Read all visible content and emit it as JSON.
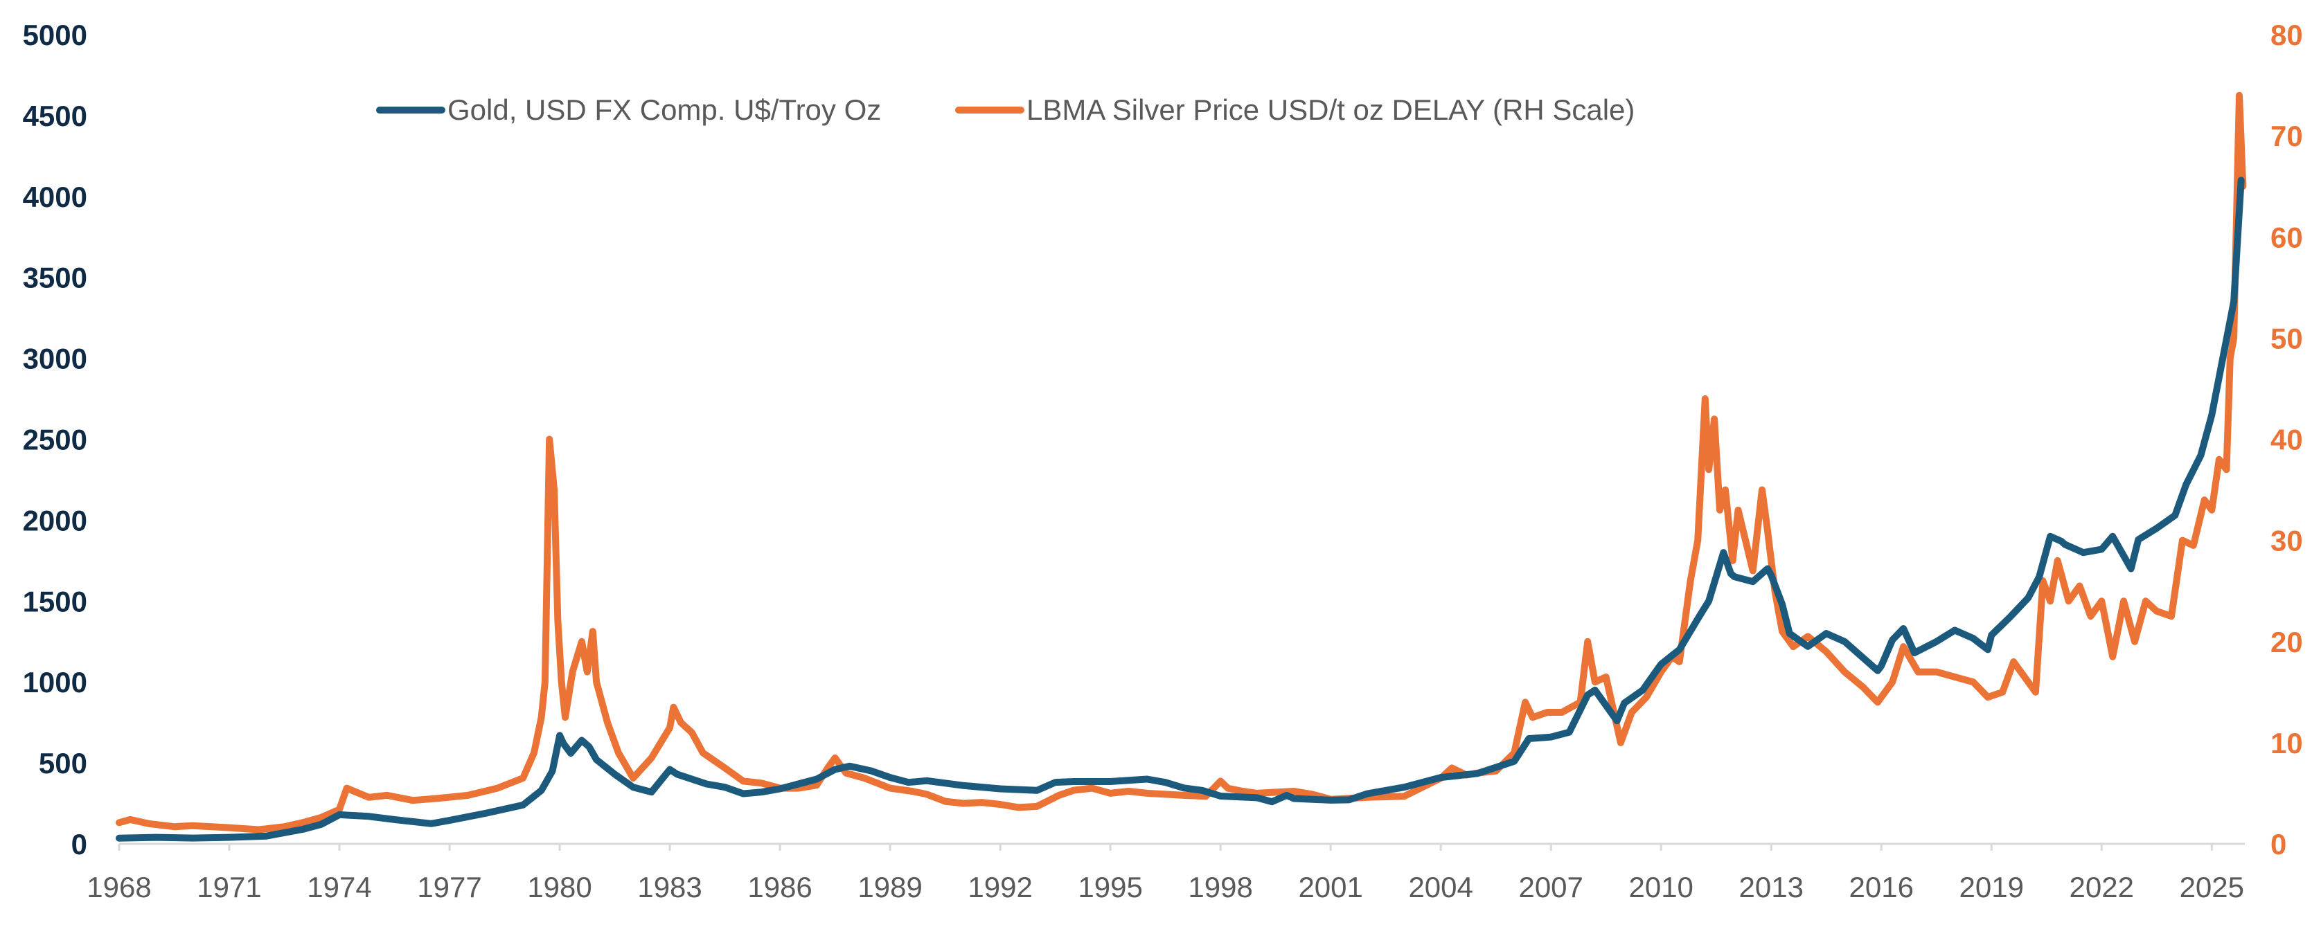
{
  "chart_data": {
    "type": "line",
    "title": "",
    "xlabel": "",
    "ylabel": "",
    "ylabel_right": "",
    "grid": false,
    "legend_position": "top",
    "xlim": [
      1968,
      2025.9
    ],
    "ylim": [
      0,
      5000
    ],
    "ylim_right": [
      0,
      80
    ],
    "x_ticks": [
      1968,
      1971,
      1974,
      1977,
      1980,
      1983,
      1986,
      1989,
      1992,
      1995,
      1998,
      2001,
      2004,
      2007,
      2010,
      2013,
      2016,
      2019,
      2022,
      2025
    ],
    "x_tick_labels": [
      "1968",
      "1971",
      "1974",
      "1977",
      "1980",
      "1983",
      "1986",
      "1989",
      "1992",
      "1995",
      "1998",
      "2001",
      "2004",
      "2007",
      "2010",
      "2013",
      "2016",
      "2019",
      "2022",
      "2025"
    ],
    "y_ticks_left": [
      0,
      500,
      1000,
      1500,
      2000,
      2500,
      3000,
      3500,
      4000,
      4500,
      5000
    ],
    "y_tick_labels_left": [
      "0",
      "500",
      "1000",
      "1500",
      "2000",
      "2500",
      "3000",
      "3500",
      "4000",
      "4500",
      "5000"
    ],
    "y_ticks_right": [
      0,
      10,
      20,
      30,
      40,
      50,
      60,
      70,
      80
    ],
    "y_tick_labels_right": [
      "0",
      "10",
      "20",
      "30",
      "40",
      "50",
      "60",
      "70",
      "80"
    ],
    "series": [
      {
        "name": "Gold, USD FX Comp. U$/Troy Oz",
        "axis": "left",
        "color": "#1c5a7d",
        "x": [
          1968.0,
          1969.0,
          1970.0,
          1971.0,
          1972.0,
          1973.0,
          1973.5,
          1974.0,
          1974.8,
          1975.5,
          1976.5,
          1977.0,
          1978.0,
          1979.0,
          1979.5,
          1979.8,
          1980.0,
          1980.1,
          1980.3,
          1980.6,
          1980.8,
          1981.0,
          1981.5,
          1982.0,
          1982.5,
          1983.0,
          1983.2,
          1983.6,
          1984.0,
          1984.5,
          1985.0,
          1985.5,
          1986.0,
          1986.5,
          1987.0,
          1987.5,
          1987.9,
          1988.5,
          1989.0,
          1989.5,
          1990.0,
          1991.0,
          1992.0,
          1993.0,
          1993.5,
          1994.0,
          1995.0,
          1996.0,
          1996.5,
          1997.0,
          1997.5,
          1998.0,
          1999.0,
          1999.4,
          1999.8,
          2000.0,
          2001.0,
          2001.5,
          2002.0,
          2003.0,
          2004.0,
          2005.0,
          2006.0,
          2006.4,
          2007.0,
          2007.5,
          2008.0,
          2008.2,
          2008.8,
          2009.0,
          2009.5,
          2010.0,
          2010.5,
          2011.0,
          2011.3,
          2011.7,
          2011.9,
          2012.0,
          2012.5,
          2012.9,
          2013.0,
          2013.3,
          2013.5,
          2014.0,
          2014.5,
          2015.0,
          2015.5,
          2015.9,
          2016.0,
          2016.3,
          2016.6,
          2016.9,
          2017.5,
          2018.0,
          2018.5,
          2018.9,
          2019.0,
          2019.5,
          2020.0,
          2020.3,
          2020.6,
          2020.9,
          2021.0,
          2021.5,
          2022.0,
          2022.3,
          2022.8,
          2023.0,
          2023.5,
          2024.0,
          2024.3,
          2024.7,
          2025.0,
          2025.3,
          2025.6,
          2025.8
        ],
        "values": [
          35,
          40,
          36,
          40,
          48,
          90,
          120,
          180,
          170,
          150,
          125,
          145,
          190,
          240,
          330,
          450,
          670,
          620,
          560,
          640,
          600,
          520,
          430,
          350,
          320,
          460,
          430,
          400,
          370,
          350,
          310,
          320,
          340,
          370,
          400,
          460,
          480,
          450,
          410,
          380,
          390,
          360,
          340,
          330,
          380,
          385,
          385,
          400,
          380,
          345,
          330,
          295,
          285,
          260,
          300,
          280,
          270,
          272,
          310,
          350,
          410,
          435,
          510,
          650,
          660,
          690,
          920,
          950,
          760,
          870,
          950,
          1110,
          1200,
          1390,
          1500,
          1800,
          1670,
          1650,
          1620,
          1700,
          1660,
          1480,
          1300,
          1220,
          1300,
          1250,
          1150,
          1070,
          1100,
          1260,
          1330,
          1180,
          1250,
          1320,
          1270,
          1200,
          1290,
          1400,
          1520,
          1650,
          1900,
          1870,
          1850,
          1800,
          1820,
          1900,
          1700,
          1880,
          1950,
          2030,
          2220,
          2400,
          2650,
          3000,
          3350,
          4100
        ]
      },
      {
        "name": "LBMA Silver Price USD/t oz DELAY (RH Scale)",
        "axis": "right",
        "color": "#ea7335",
        "x": [
          1968.0,
          1968.3,
          1968.8,
          1969.5,
          1970.0,
          1971.0,
          1971.8,
          1972.5,
          1973.0,
          1973.5,
          1974.0,
          1974.2,
          1974.8,
          1975.3,
          1976.0,
          1976.7,
          1977.5,
          1978.3,
          1979.0,
          1979.3,
          1979.5,
          1979.6,
          1979.72,
          1979.85,
          1979.95,
          1980.05,
          1980.15,
          1980.35,
          1980.6,
          1980.75,
          1980.9,
          1981.0,
          1981.3,
          1981.6,
          1982.0,
          1982.5,
          1983.0,
          1983.1,
          1983.3,
          1983.6,
          1983.9,
          1984.5,
          1985.0,
          1985.5,
          1986.0,
          1986.5,
          1987.0,
          1987.3,
          1987.5,
          1987.8,
          1988.3,
          1989.0,
          1989.6,
          1990.0,
          1990.5,
          1991.0,
          1991.5,
          1992.0,
          1992.5,
          1993.0,
          1993.6,
          1994.0,
          1994.5,
          1995.0,
          1995.5,
          1996.0,
          1997.0,
          1997.6,
          1998.0,
          1998.2,
          1998.6,
          1999.0,
          2000.0,
          2000.5,
          2001.0,
          2002.0,
          2003.0,
          2004.0,
          2004.3,
          2004.7,
          2005.0,
          2005.5,
          2006.0,
          2006.3,
          2006.5,
          2006.9,
          2007.3,
          2007.8,
          2008.0,
          2008.2,
          2008.5,
          2008.9,
          2009.2,
          2009.6,
          2010.0,
          2010.3,
          2010.5,
          2010.8,
          2011.0,
          2011.2,
          2011.3,
          2011.45,
          2011.6,
          2011.75,
          2011.95,
          2012.1,
          2012.3,
          2012.5,
          2012.75,
          2012.9,
          2013.1,
          2013.3,
          2013.6,
          2014.0,
          2014.5,
          2015.0,
          2015.5,
          2015.9,
          2016.3,
          2016.6,
          2017.0,
          2017.5,
          2018.0,
          2018.5,
          2018.9,
          2019.3,
          2019.6,
          2019.9,
          2020.2,
          2020.4,
          2020.6,
          2020.8,
          2021.1,
          2021.4,
          2021.7,
          2022.0,
          2022.3,
          2022.6,
          2022.9,
          2023.2,
          2023.5,
          2023.9,
          2024.2,
          2024.5,
          2024.8,
          2025.0,
          2025.2,
          2025.4,
          2025.5,
          2025.6,
          2025.75,
          2025.85
        ],
        "values": [
          2.1,
          2.4,
          2.0,
          1.7,
          1.8,
          1.6,
          1.4,
          1.7,
          2.1,
          2.6,
          3.4,
          5.5,
          4.6,
          4.8,
          4.3,
          4.5,
          4.8,
          5.5,
          6.5,
          9.0,
          12.5,
          16.0,
          40.0,
          35.0,
          22.0,
          16.0,
          12.5,
          17.0,
          20.0,
          17.0,
          21.0,
          16.0,
          12.0,
          9.0,
          6.5,
          8.5,
          11.5,
          13.5,
          12.0,
          11.0,
          9.0,
          7.5,
          6.2,
          6.0,
          5.5,
          5.5,
          5.8,
          7.5,
          8.5,
          7.0,
          6.5,
          5.5,
          5.2,
          4.9,
          4.2,
          4.0,
          4.1,
          3.9,
          3.6,
          3.7,
          4.8,
          5.3,
          5.5,
          5.0,
          5.2,
          5.0,
          4.8,
          4.7,
          6.2,
          5.5,
          5.2,
          5.0,
          5.2,
          4.9,
          4.4,
          4.6,
          4.7,
          6.5,
          7.5,
          6.8,
          7.0,
          7.2,
          9.0,
          14.0,
          12.5,
          13.0,
          13.0,
          14.0,
          20.0,
          16.0,
          16.5,
          10.0,
          13.0,
          14.5,
          17.0,
          18.5,
          18.0,
          26.0,
          30.0,
          44.0,
          37.0,
          42.0,
          33.0,
          35.0,
          28.0,
          33.0,
          30.0,
          27.0,
          35.0,
          31.0,
          25.0,
          21.0,
          19.5,
          20.5,
          19.0,
          17.0,
          15.5,
          14.0,
          16.0,
          19.5,
          17.0,
          17.0,
          16.5,
          16.0,
          14.5,
          15.0,
          18.0,
          16.5,
          15.0,
          26.0,
          24.0,
          28.0,
          24.0,
          25.5,
          22.5,
          24.0,
          18.5,
          24.0,
          20.0,
          24.0,
          23.0,
          22.5,
          30.0,
          29.5,
          34.0,
          33.0,
          38.0,
          37.0,
          48.0,
          50.0,
          74.0,
          65.0
        ]
      }
    ]
  }
}
